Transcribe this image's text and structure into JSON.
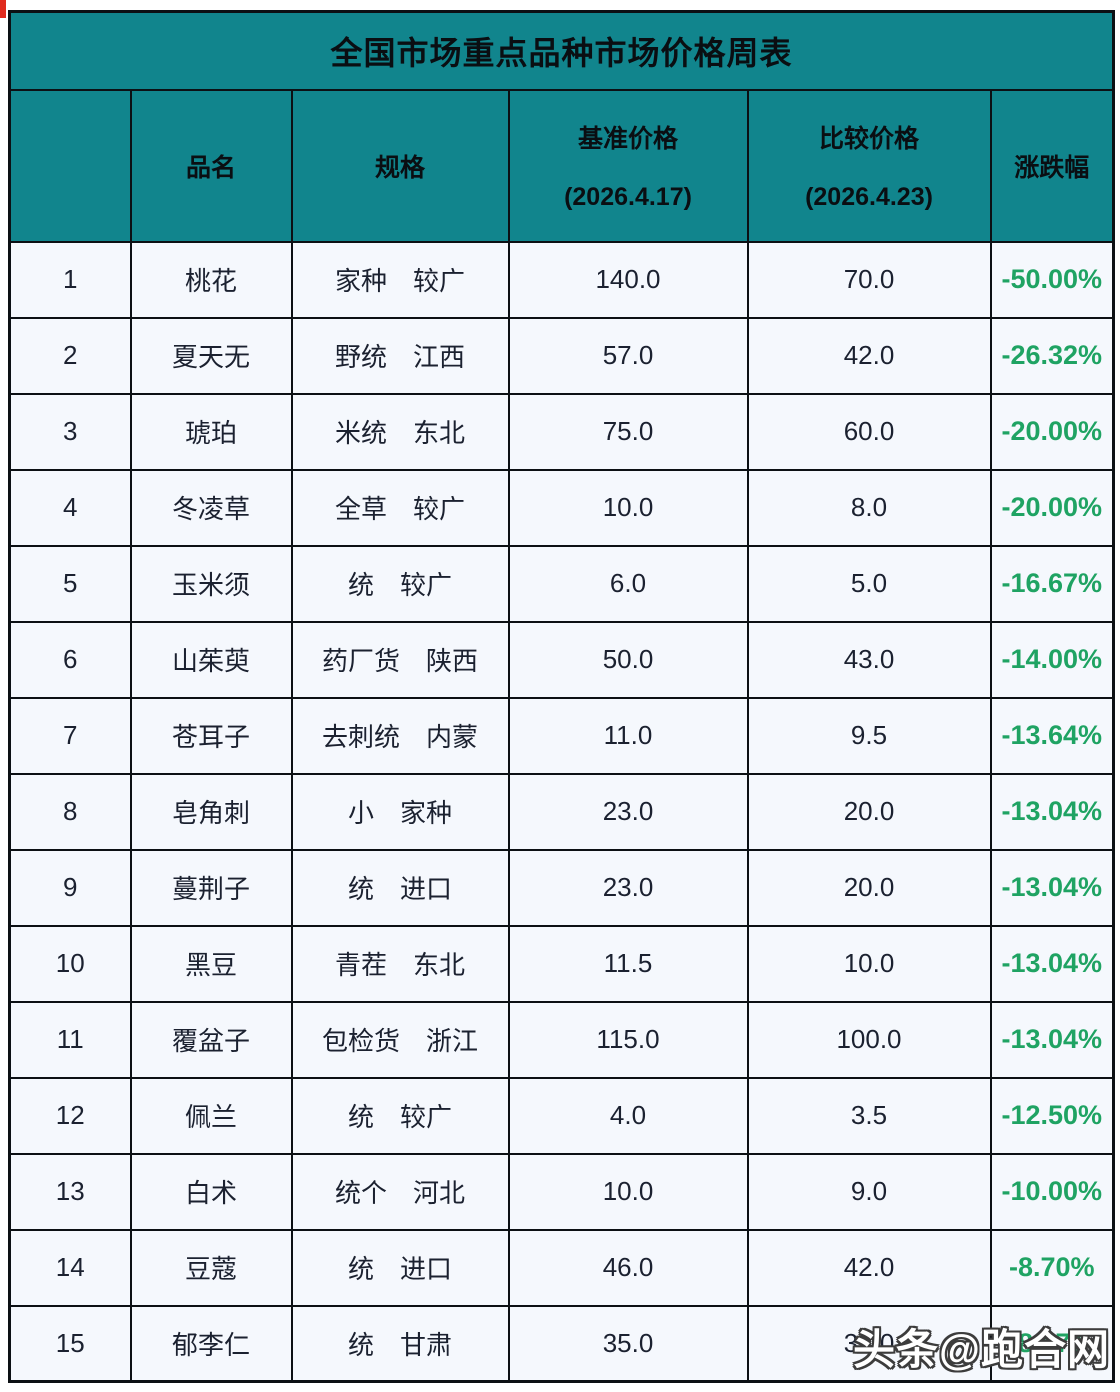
{
  "page": {
    "title": "全国市场重点品种市场价格周表",
    "watermark": "头条@跑合网"
  },
  "colors": {
    "header_teal": "#11858d",
    "row_background": "#f5f8fd",
    "change_green": "#1fa363",
    "border_black": "#0c1014",
    "corner_red": "#e02b1e"
  },
  "table": {
    "columns": {
      "index": "",
      "name": "品名",
      "spec": "规格",
      "base_line1": "基准价格",
      "base_line2": "(2026.4.17)",
      "compare_line1": "比较价格",
      "compare_line2": "(2026.4.23)",
      "change": "涨跌幅"
    },
    "rows": [
      {
        "index": "1",
        "name": "桃花",
        "spec": "家种　较广",
        "base": "140.0",
        "compare": "70.0",
        "change": "-50.00%"
      },
      {
        "index": "2",
        "name": "夏天无",
        "spec": "野统　江西",
        "base": "57.0",
        "compare": "42.0",
        "change": "-26.32%"
      },
      {
        "index": "3",
        "name": "琥珀",
        "spec": "米统　东北",
        "base": "75.0",
        "compare": "60.0",
        "change": "-20.00%"
      },
      {
        "index": "4",
        "name": "冬凌草",
        "spec": "全草　较广",
        "base": "10.0",
        "compare": "8.0",
        "change": "-20.00%"
      },
      {
        "index": "5",
        "name": "玉米须",
        "spec": "统　较广",
        "base": "6.0",
        "compare": "5.0",
        "change": "-16.67%"
      },
      {
        "index": "6",
        "name": "山茱萸",
        "spec": "药厂货　陕西",
        "base": "50.0",
        "compare": "43.0",
        "change": "-14.00%"
      },
      {
        "index": "7",
        "name": "苍耳子",
        "spec": "去刺统　内蒙",
        "base": "11.0",
        "compare": "9.5",
        "change": "-13.64%"
      },
      {
        "index": "8",
        "name": "皂角刺",
        "spec": "小　家种",
        "base": "23.0",
        "compare": "20.0",
        "change": "-13.04%"
      },
      {
        "index": "9",
        "name": "蔓荆子",
        "spec": "统　进口",
        "base": "23.0",
        "compare": "20.0",
        "change": "-13.04%"
      },
      {
        "index": "10",
        "name": "黑豆",
        "spec": "青茬　东北",
        "base": "11.5",
        "compare": "10.0",
        "change": "-13.04%"
      },
      {
        "index": "11",
        "name": "覆盆子",
        "spec": "包检货　浙江",
        "base": "115.0",
        "compare": "100.0",
        "change": "-13.04%"
      },
      {
        "index": "12",
        "name": "佩兰",
        "spec": "统　较广",
        "base": "4.0",
        "compare": "3.5",
        "change": "-12.50%"
      },
      {
        "index": "13",
        "name": "白术",
        "spec": "统个　河北",
        "base": "10.0",
        "compare": "9.0",
        "change": "-10.00%"
      },
      {
        "index": "14",
        "name": "豆蔻",
        "spec": "统　进口",
        "base": "46.0",
        "compare": "42.0",
        "change": "-8.70%"
      },
      {
        "index": "15",
        "name": "郁李仁",
        "spec": "统　甘肃",
        "base": "35.0",
        "compare": "32.0",
        "change": "-8.57%"
      }
    ]
  }
}
